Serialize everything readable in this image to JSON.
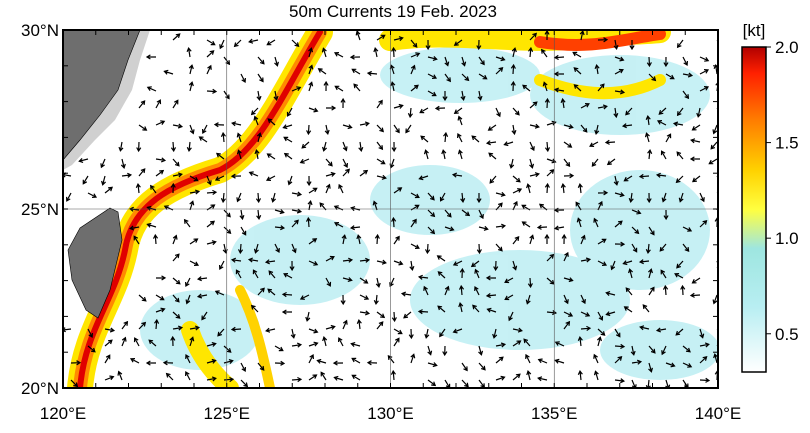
{
  "title": "50m Currents  19 Feb. 2023",
  "lon_ticks": [
    {
      "value": 120,
      "label": "120°E"
    },
    {
      "value": 125,
      "label": "125°E"
    },
    {
      "value": 130,
      "label": "130°E"
    },
    {
      "value": 135,
      "label": "135°E"
    },
    {
      "value": 140,
      "label": "140°E"
    }
  ],
  "lat_ticks": [
    {
      "value": 20,
      "label": "20°N"
    },
    {
      "value": 25,
      "label": "25°N"
    },
    {
      "value": 30,
      "label": "30°N"
    }
  ],
  "colorbar": {
    "unit": "[kt]",
    "range": [
      0.3,
      2.0
    ],
    "ticks": [
      0.5,
      {
        "value": 1,
        "label": "1.0"
      },
      1.5,
      {
        "value": 2,
        "label": "2.0"
      }
    ]
  }
}
